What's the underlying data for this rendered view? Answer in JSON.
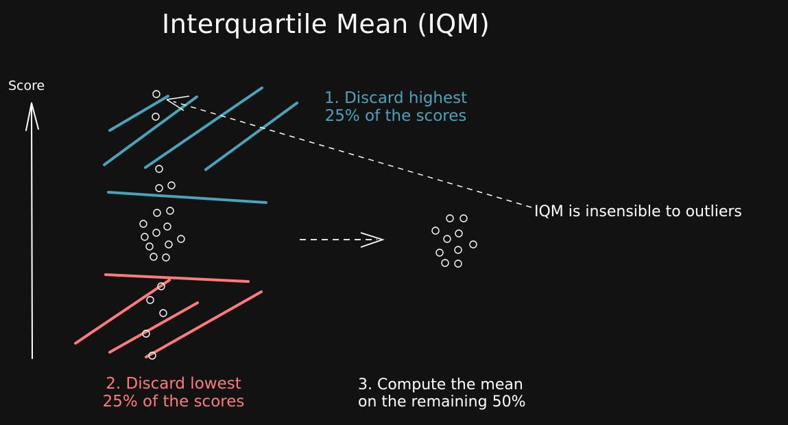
{
  "title": "Interquartile Mean (IQM)",
  "axis_label": "Score",
  "labels": {
    "top": [
      "1. Discard highest",
      "25% of the scores"
    ],
    "bottom": [
      "2. Discard lowest",
      "25% of the scores"
    ],
    "compute": [
      "3. Compute the mean",
      "on the remaining 50%"
    ],
    "outliers": "IQM is insensible to outliers"
  },
  "colors": {
    "background": "#121212",
    "blue": "#4aa3b8",
    "red": "#ff7b7b",
    "white": "#ffffff"
  }
}
